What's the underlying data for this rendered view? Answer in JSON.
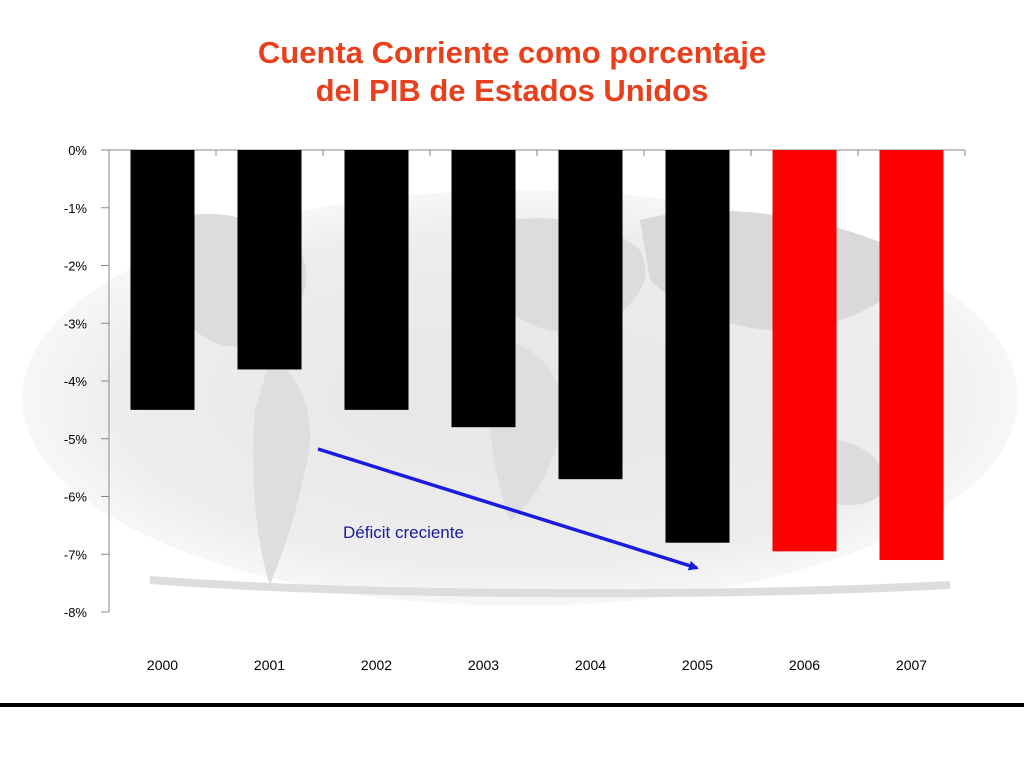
{
  "title_lines": [
    "Cuenta Corriente como porcentaje",
    "del PIB de Estados Unidos"
  ],
  "annotation": "Déficit creciente",
  "colors": {
    "title": "#e8401c",
    "bar_default": "#000000",
    "bar_highlight": "#ff0000",
    "arrow": "#1a1ae0",
    "annotation": "#1a1aa0"
  },
  "chart_data": {
    "type": "bar",
    "title": "Cuenta Corriente como porcentaje del PIB de Estados Unidos",
    "categories": [
      "2000",
      "2001",
      "2002",
      "2003",
      "2004",
      "2005",
      "2006",
      "2007"
    ],
    "values": [
      -4.5,
      -3.8,
      -4.5,
      -4.8,
      -5.7,
      -6.8,
      -6.95,
      -7.1
    ],
    "highlighted": [
      "2006",
      "2007"
    ],
    "ylim": [
      -8,
      0
    ],
    "yticks": [
      0,
      -1,
      -2,
      -3,
      -4,
      -5,
      -6,
      -7,
      -8
    ],
    "ytick_labels": [
      "0%",
      "-1%",
      "-2%",
      "-3%",
      "-4%",
      "-5%",
      "-6%",
      "-7%",
      "-8%"
    ],
    "xlabel": "",
    "ylabel": "",
    "grid": false,
    "background": "world map (faded)"
  }
}
